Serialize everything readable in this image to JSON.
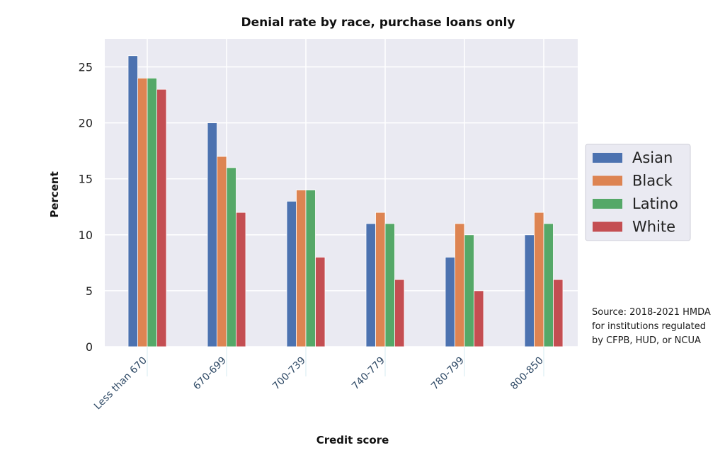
{
  "chart_data": {
    "type": "bar",
    "title": "Denial rate by race, purchase loans only",
    "xlabel": "Credit score",
    "ylabel": "Percent",
    "categories": [
      "Less than 670",
      "670-699",
      "700-739",
      "740-779",
      "780-799",
      "800-850"
    ],
    "series": [
      {
        "name": "Asian",
        "color": "#4c72b0",
        "values": [
          26,
          20,
          13,
          11,
          8,
          10
        ]
      },
      {
        "name": "Black",
        "color": "#dd8452",
        "values": [
          24,
          17,
          14,
          12,
          11,
          12
        ]
      },
      {
        "name": "Latino",
        "color": "#55a868",
        "values": [
          24,
          16,
          14,
          11,
          10,
          11
        ]
      },
      {
        "name": "White",
        "color": "#c44e52",
        "values": [
          23,
          12,
          8,
          6,
          5,
          6
        ]
      }
    ],
    "yticks": [
      "0",
      "5",
      "10",
      "15",
      "20",
      "25"
    ],
    "ylim": [
      0,
      27.5
    ],
    "grid": true,
    "legend_position": "right",
    "plot_background": "#eaeaf2"
  },
  "source_note": {
    "lines": [
      "Source: 2018-2021 HMDA",
      "for institutions regulated",
      "by CFPB, HUD, or NCUA"
    ]
  }
}
